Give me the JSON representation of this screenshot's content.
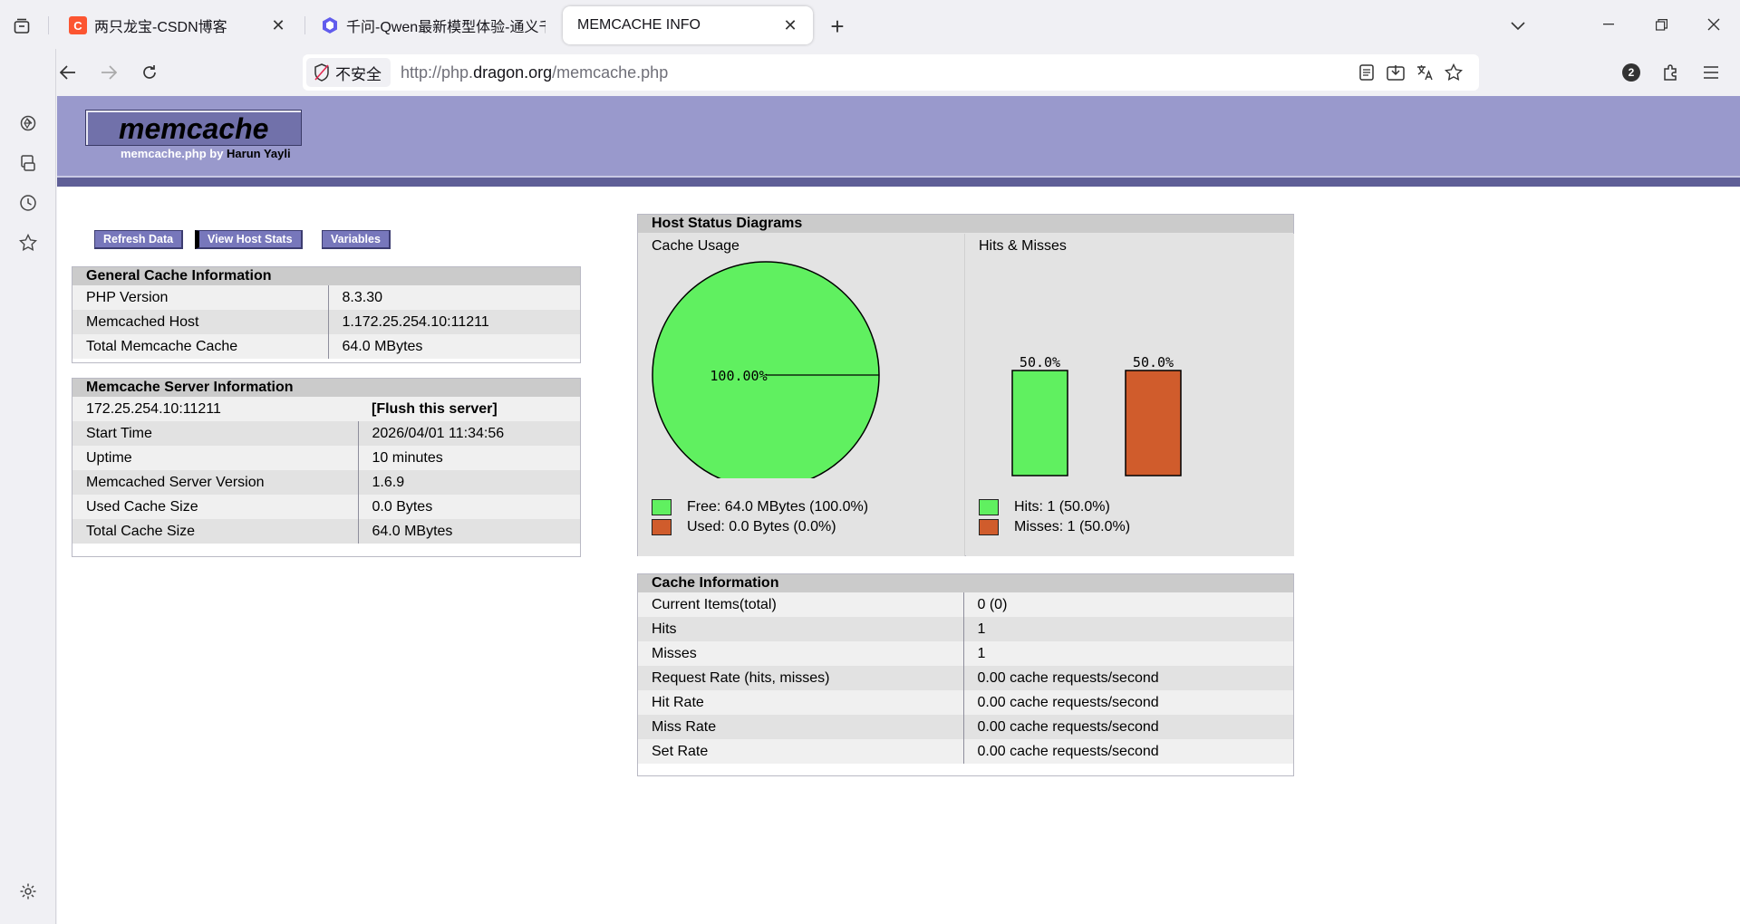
{
  "browser": {
    "tabs": [
      {
        "title": "两只龙宝-CSDN博客",
        "favicon": "C",
        "favicon_color": "#fc5531",
        "active": false
      },
      {
        "title": "千问-Qwen最新模型体验-通义千问",
        "favicon": "qwen",
        "favicon_color": "#615ced",
        "active": false
      },
      {
        "title": "MEMCACHE INFO",
        "favicon": "",
        "active": true
      }
    ],
    "security_label": "不安全",
    "url_prefix": "http://php.",
    "url_host": "dragon.org",
    "url_path": "/memcache.php",
    "extensions_badge": "2"
  },
  "header": {
    "logo": "memcache",
    "subtitle_prefix": "memcache.php by ",
    "subtitle_author": "Harun Yayli"
  },
  "menu": {
    "refresh": "Refresh Data",
    "host_stats": "View Host Stats",
    "variables": "Variables"
  },
  "general": {
    "title": "General Cache Information",
    "rows": [
      {
        "label": "PHP Version",
        "value": "8.3.30"
      },
      {
        "label": "Memcached Host",
        "value": "1.172.25.254.10:11211"
      },
      {
        "label": "Total Memcache Cache",
        "value": "64.0 MBytes"
      }
    ]
  },
  "server": {
    "title": "Memcache Server Information",
    "host": "172.25.254.10:11211",
    "flush": "[Flush this server]",
    "rows": [
      {
        "label": "Start Time",
        "value": "2026/04/01 11:34:56"
      },
      {
        "label": "Uptime",
        "value": "10 minutes"
      },
      {
        "label": "Memcached Server Version",
        "value": "1.6.9"
      },
      {
        "label": "Used Cache Size",
        "value": "0.0 Bytes"
      },
      {
        "label": "Total Cache Size",
        "value": "64.0 MBytes"
      }
    ]
  },
  "diagrams": {
    "title": "Host Status Diagrams",
    "cache_usage_title": "Cache Usage",
    "hits_misses_title": "Hits & Misses",
    "legend": {
      "free": "Free: 64.0 MBytes (100.0%)",
      "used": "Used: 0.0 Bytes (0.0%)",
      "hits": "Hits: 1 (50.0%)",
      "misses": "Misses: 1 (50.0%)"
    }
  },
  "cache_info": {
    "title": "Cache Information",
    "rows": [
      {
        "label": "Current Items(total)",
        "value": "0 (0)"
      },
      {
        "label": "Hits",
        "value": "1"
      },
      {
        "label": "Misses",
        "value": "1"
      },
      {
        "label": "Request Rate (hits, misses)",
        "value": "0.00 cache requests/second"
      },
      {
        "label": "Hit Rate",
        "value": "0.00 cache requests/second"
      },
      {
        "label": "Miss Rate",
        "value": "0.00 cache requests/second"
      },
      {
        "label": "Set Rate",
        "value": "0.00 cache requests/second"
      }
    ]
  },
  "chart_data": [
    {
      "type": "pie",
      "title": "Cache Usage",
      "slices": [
        {
          "name": "Free",
          "value": 100.0,
          "label": "100.00%",
          "color": "#60f060"
        },
        {
          "name": "Used",
          "value": 0.0,
          "color": "#d05c2c"
        }
      ]
    },
    {
      "type": "bar",
      "title": "Hits & Misses",
      "categories": [
        "Hits",
        "Misses"
      ],
      "values": [
        50.0,
        50.0
      ],
      "data_labels": [
        "50.0%",
        "50.0%"
      ],
      "colors": [
        "#60f060",
        "#d05c2c"
      ]
    }
  ]
}
